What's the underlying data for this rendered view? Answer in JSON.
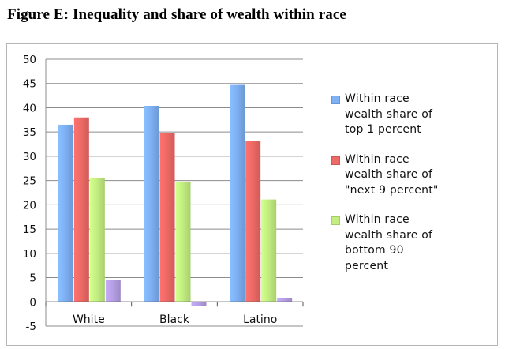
{
  "figure_title": "Figure E: Inequality and share of wealth within race",
  "chart_data": {
    "type": "bar",
    "title": "Figure E: Inequality and share of wealth within race",
    "xlabel": "",
    "ylabel": "",
    "categories": [
      "White",
      "Black",
      "Latino"
    ],
    "ylim": [
      -5,
      50
    ],
    "yticks": [
      -5,
      0,
      5,
      10,
      15,
      20,
      25,
      30,
      35,
      40,
      45,
      50
    ],
    "grid": true,
    "legend_position": "right",
    "series": [
      {
        "name": "Within race wealth share of top 1 percent",
        "values": [
          36.5,
          40.4,
          44.7
        ],
        "color": "#7fb1f5"
      },
      {
        "name": "Within race wealth share of \"next 9 percent\"",
        "values": [
          38.0,
          34.8,
          33.2
        ],
        "color": "#ef6a66"
      },
      {
        "name": "Within race wealth share of bottom 90 percent",
        "values": [
          25.6,
          24.8,
          21.1
        ],
        "color": "#c3ef82"
      },
      {
        "name": "",
        "values": [
          4.6,
          -0.8,
          0.7
        ],
        "color": "#b7a0e6"
      }
    ]
  },
  "legend": [
    {
      "text": "Within race\nwealth share of\ntop 1 percent",
      "color": "#7fb1f5"
    },
    {
      "text": "Within race\nwealth share of\n\"next 9 percent\"",
      "color": "#ef6a66"
    },
    {
      "text": "Within race\nwealth share of\nbottom 90\npercent",
      "color": "#c3ef82"
    }
  ]
}
